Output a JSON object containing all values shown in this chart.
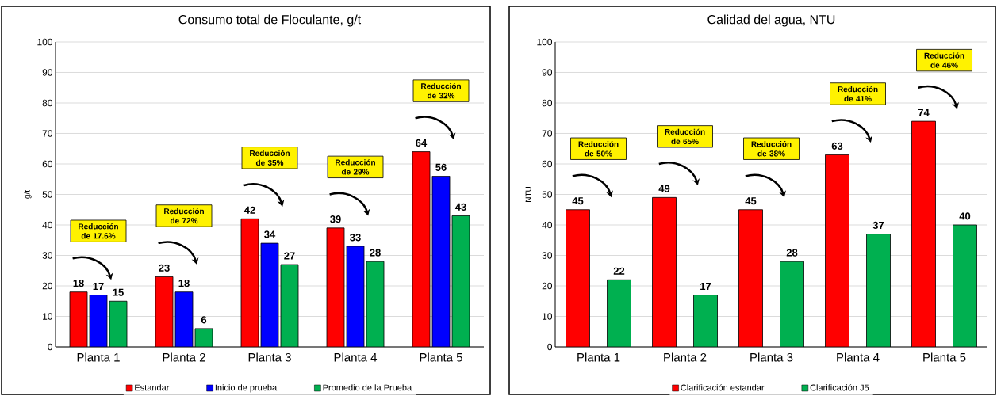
{
  "chart_data": [
    {
      "type": "bar",
      "title": "Consumo total de Floculante, g/t",
      "ylabel": "g/t",
      "categories": [
        "Planta 1",
        "Planta 2",
        "Planta 3",
        "Planta 4",
        "Planta 5"
      ],
      "series": [
        {
          "name": "Estandar",
          "color": "#ff0000",
          "values": [
            18,
            23,
            42,
            39,
            64
          ]
        },
        {
          "name": "Inicio de prueba",
          "color": "#0000ff",
          "values": [
            17,
            18,
            34,
            33,
            56
          ]
        },
        {
          "name": "Promedio de la Prueba",
          "color": "#00b050",
          "values": [
            15,
            6,
            27,
            28,
            43
          ]
        }
      ],
      "ylim": [
        0,
        100
      ],
      "yticks": [
        0,
        10,
        20,
        30,
        40,
        50,
        60,
        70,
        80,
        90,
        100
      ],
      "grid": "y",
      "legend": "bottom",
      "data_labels": true,
      "annotations": [
        "Reducción de 17.6%",
        "Reducción de 72%",
        "Reducción de 35%",
        "Reducción de 29%",
        "Reducción de 32%"
      ]
    },
    {
      "type": "bar",
      "title": "Calidad del agua, NTU",
      "ylabel": "NTU",
      "categories": [
        "Planta 1",
        "Planta 2",
        "Planta 3",
        "Planta 4",
        "Planta 5"
      ],
      "series": [
        {
          "name": "Clarificación estandar",
          "color": "#ff0000",
          "values": [
            45,
            49,
            45,
            63,
            74
          ]
        },
        {
          "name": "Clarificación J5",
          "color": "#00b050",
          "values": [
            22,
            17,
            28,
            37,
            40
          ]
        }
      ],
      "ylim": [
        0,
        100
      ],
      "yticks": [
        0,
        10,
        20,
        30,
        40,
        50,
        60,
        70,
        80,
        90,
        100
      ],
      "grid": "y",
      "legend": "bottom",
      "data_labels": true,
      "annotations": [
        "Reducción de 50%",
        "Reducción de 65%",
        "Reducción de 38%",
        "Reducción de 41%",
        "Reducción de 46%"
      ]
    }
  ]
}
